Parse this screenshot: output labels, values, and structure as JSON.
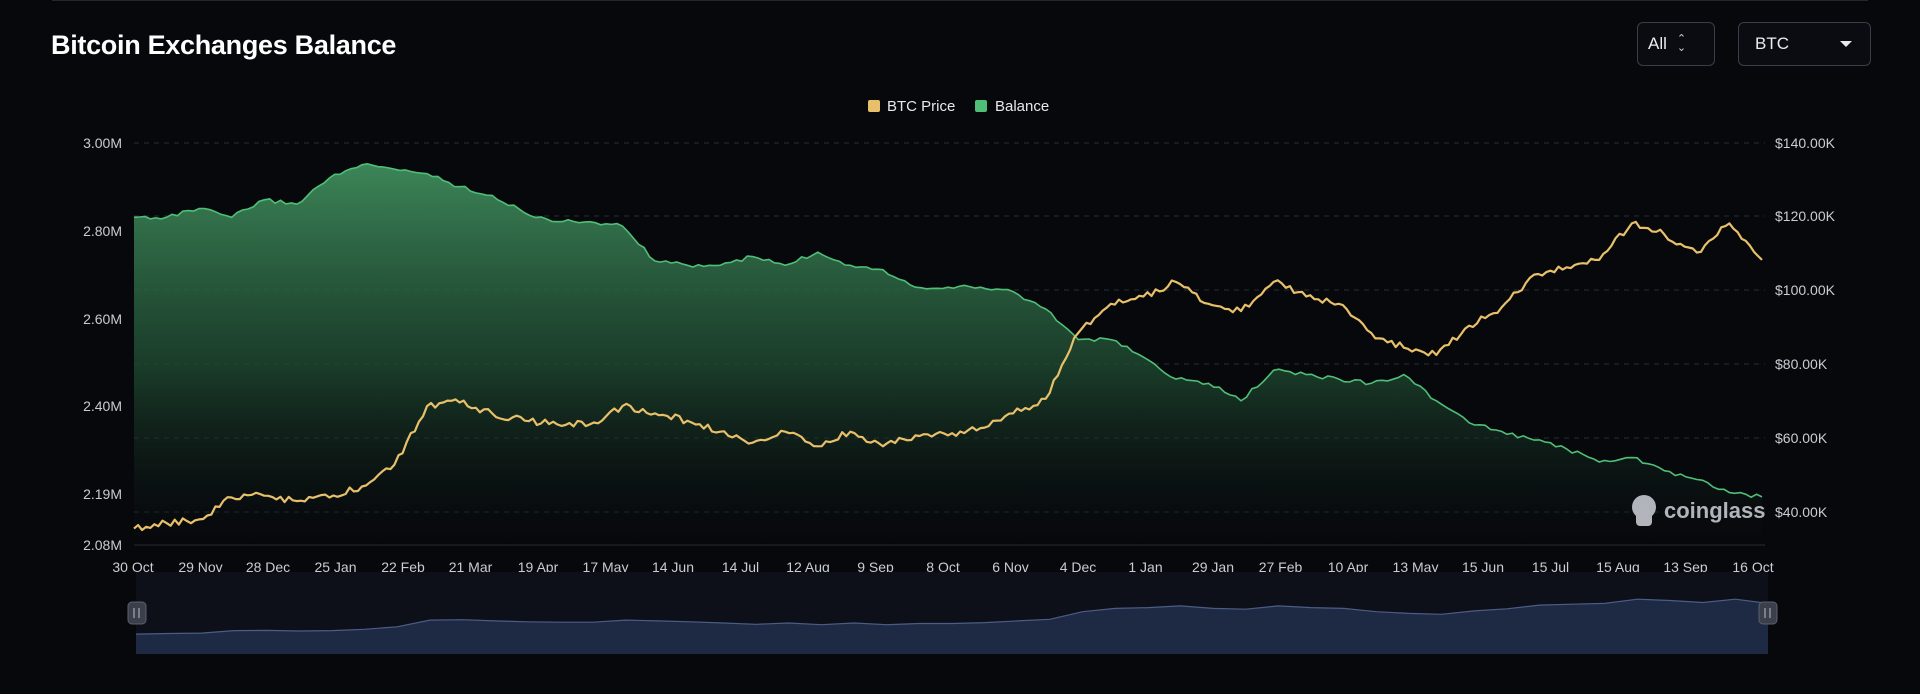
{
  "header": {
    "title": "Bitcoin Exchanges Balance",
    "range_select": "All",
    "unit_select": "BTC"
  },
  "watermark": "coinglass",
  "colors": {
    "background": "#07080c",
    "price": "#e8c06a",
    "balance": "#4fbf78",
    "balance_fill_top": "#3f8c5c",
    "navigator": "#1e2a44"
  },
  "chart_data": {
    "type": "area",
    "legend": [
      "BTC Price",
      "Balance"
    ],
    "legend_position": "top-center",
    "grid": true,
    "y_left_ticks": [
      "3.00M",
      "2.80M",
      "2.60M",
      "2.40M",
      "2.19M",
      "2.08M"
    ],
    "y_left_range": [
      2080000,
      3000000
    ],
    "y_right_ticks": [
      "$140.00K",
      "$120.00K",
      "$100.00K",
      "$80.00K",
      "$60.00K",
      "$40.00K"
    ],
    "y_right_range": [
      30000,
      140000
    ],
    "x_ticks": [
      "30 Oct",
      "29 Nov",
      "28 Dec",
      "25 Jan",
      "22 Feb",
      "21 Mar",
      "19 Apr",
      "17 May",
      "14 Jun",
      "14 Jul",
      "12 Aug",
      "9 Sep",
      "8 Oct",
      "6 Nov",
      "4 Dec",
      "1 Jan",
      "29 Jan",
      "27 Feb",
      "10 Apr",
      "13 May",
      "15 Jun",
      "15 Jul",
      "15 Aug",
      "13 Sep",
      "16 Oct"
    ],
    "series": [
      {
        "name": "Balance",
        "axis": "left",
        "values": [
          2830000,
          2830000,
          2850000,
          2830000,
          2870000,
          2860000,
          2920000,
          2950000,
          2940000,
          2930000,
          2900000,
          2880000,
          2840000,
          2820000,
          2820000,
          2810000,
          2730000,
          2720000,
          2720000,
          2740000,
          2720000,
          2750000,
          2720000,
          2710000,
          2670000,
          2670000,
          2670000,
          2660000,
          2620000,
          2550000,
          2550000,
          2510000,
          2460000,
          2450000,
          2410000,
          2480000,
          2470000,
          2460000,
          2450000,
          2470000,
          2410000,
          2360000,
          2340000,
          2320000,
          2300000,
          2270000,
          2280000,
          2250000,
          2230000,
          2200000,
          2190000
        ]
      },
      {
        "name": "BTC Price",
        "axis": "right",
        "values": [
          34500,
          36000,
          37000,
          43000,
          43500,
          42000,
          43000,
          46000,
          52000,
          68000,
          69000,
          66000,
          64000,
          63000,
          63000,
          68000,
          66000,
          64000,
          61000,
          58000,
          61000,
          57000,
          61000,
          57000,
          60000,
          60000,
          62000,
          66000,
          70000,
          88000,
          96000,
          98000,
          102000,
          96000,
          94000,
          102000,
          98000,
          96000,
          88000,
          84000,
          82000,
          90000,
          95000,
          104000,
          106000,
          108000,
          118000,
          115000,
          110000,
          118000,
          108000
        ]
      }
    ]
  }
}
